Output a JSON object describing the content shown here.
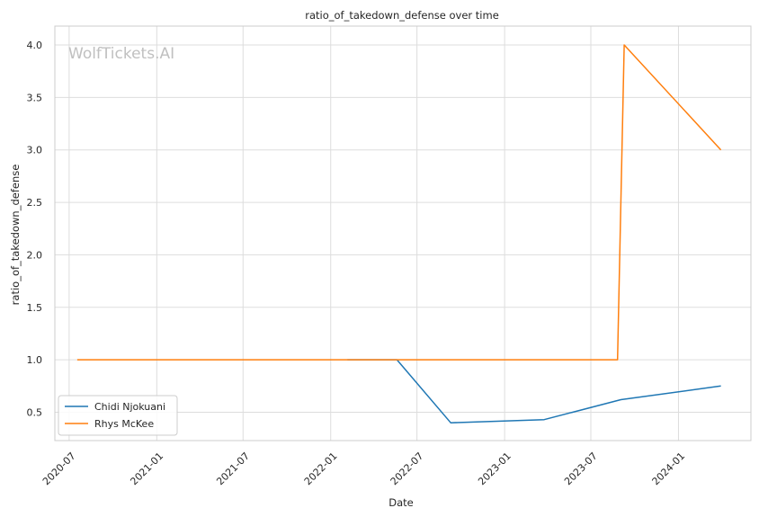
{
  "chart_data": {
    "type": "line",
    "title": "ratio_of_takedown_defense over time",
    "xlabel": "Date",
    "ylabel": "ratio_of_takedown_defense",
    "watermark": "WolfTickets.AI",
    "x_ticks": [
      "2020-07",
      "2021-01",
      "2021-07",
      "2022-01",
      "2022-07",
      "2023-01",
      "2023-07",
      "2024-01"
    ],
    "y_ticks": [
      "0.5",
      "1.0",
      "1.5",
      "2.0",
      "2.5",
      "3.0",
      "3.5",
      "4.0"
    ],
    "xlim": [
      "2020-06-01",
      "2024-06-01"
    ],
    "ylim": [
      0.23,
      4.18
    ],
    "grid": true,
    "legend_position": "lower-left",
    "series": [
      {
        "name": "Chidi Njokuani",
        "color": "#1f77b4",
        "points": [
          {
            "x": "2022-02-05",
            "y": 1.0
          },
          {
            "x": "2022-05-20",
            "y": 1.0
          },
          {
            "x": "2022-09-10",
            "y": 0.4
          },
          {
            "x": "2023-03-25",
            "y": 0.43
          },
          {
            "x": "2023-09-02",
            "y": 0.62
          },
          {
            "x": "2024-03-30",
            "y": 0.75
          }
        ]
      },
      {
        "name": "Rhys McKee",
        "color": "#ff7f0e",
        "points": [
          {
            "x": "2020-07-18",
            "y": 1.0
          },
          {
            "x": "2023-08-26",
            "y": 1.0
          },
          {
            "x": "2023-09-09",
            "y": 4.0
          },
          {
            "x": "2024-03-30",
            "y": 3.0
          }
        ]
      }
    ]
  }
}
